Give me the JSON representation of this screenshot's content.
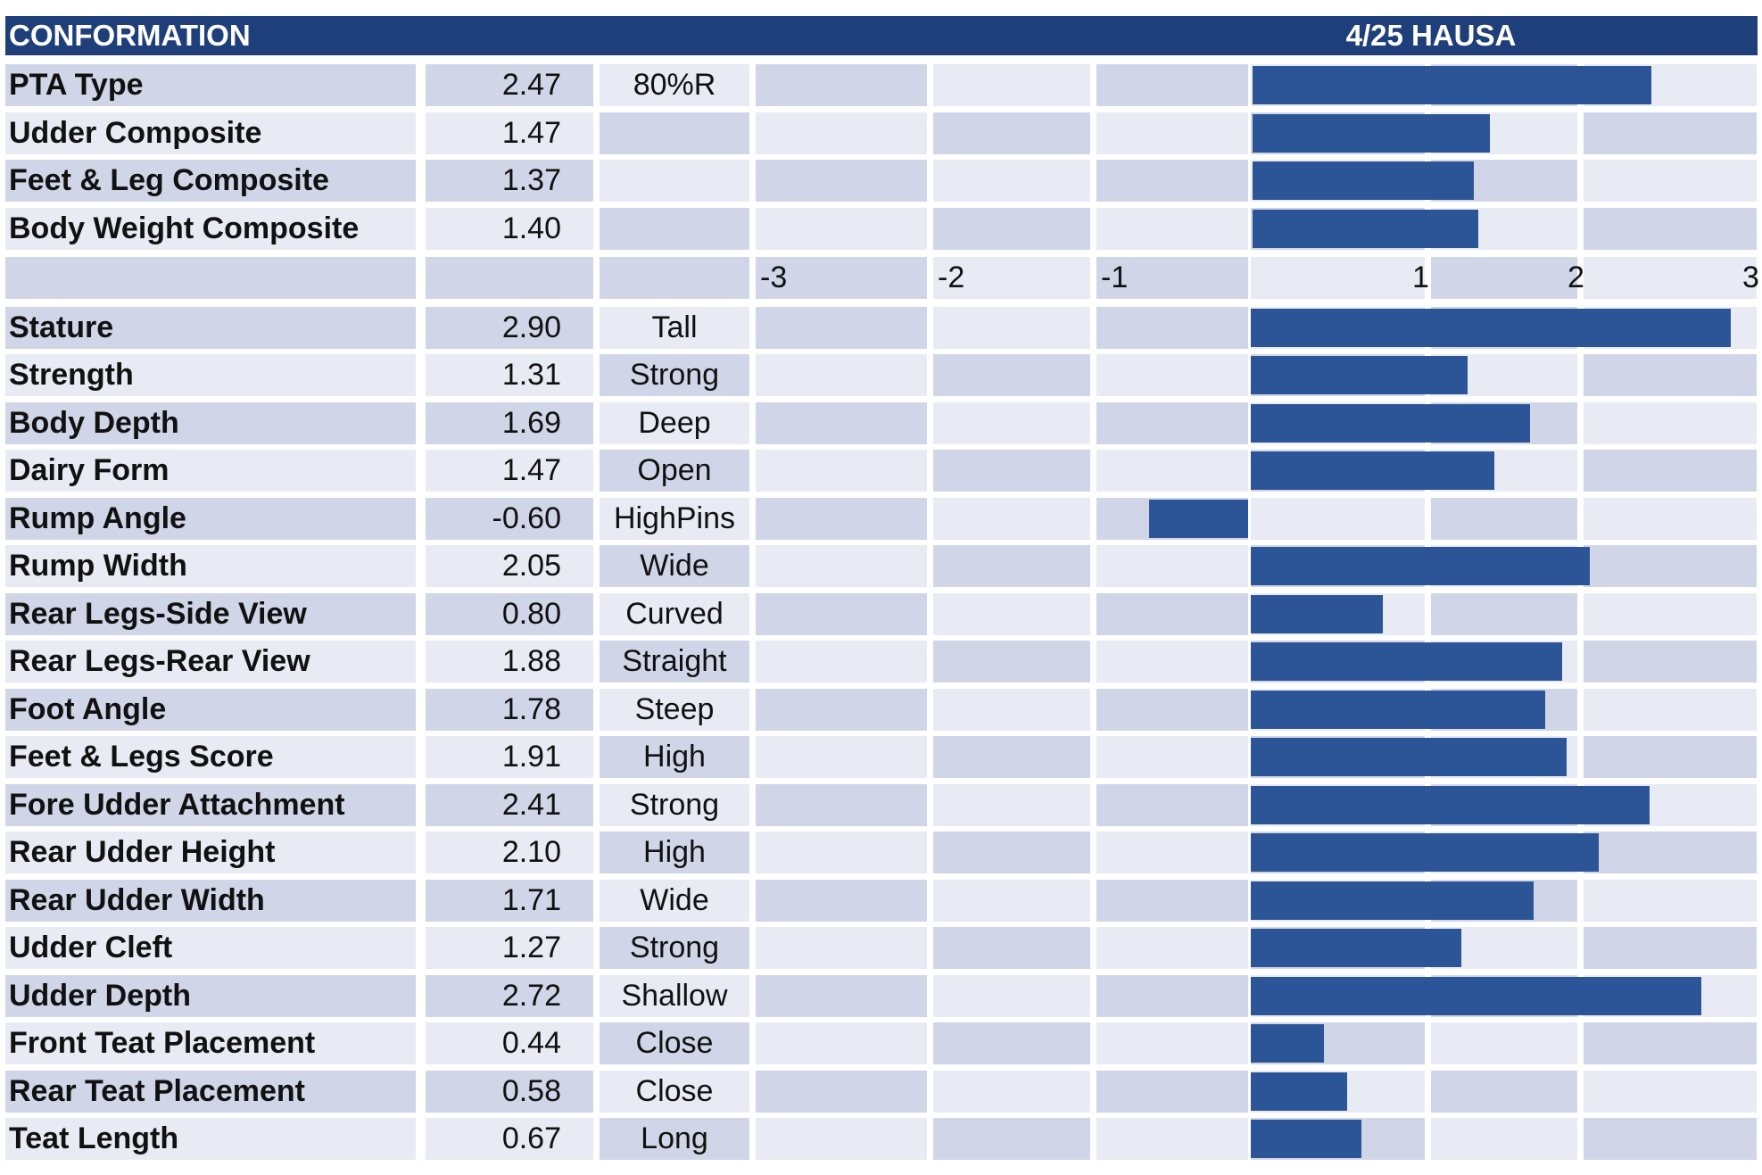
{
  "header": {
    "title": "CONFORMATION",
    "source": "4/25 HAUSA"
  },
  "colors": {
    "header_bg": "#1f3f7a",
    "bar": "#2b5597",
    "row_dark": "#d0d5e8",
    "row_light": "#e8ebf4"
  },
  "chart_data": [
    {
      "type": "bar",
      "orientation": "horizontal",
      "title": "",
      "xlim": [
        0,
        3
      ],
      "categories": [
        "PTA Type",
        "Udder Composite",
        "Feet & Leg Composite",
        "Body Weight Composite"
      ],
      "values": [
        2.47,
        1.47,
        1.37,
        1.4
      ],
      "value_labels": [
        "2.47",
        "1.47",
        "1.37",
        "1.40"
      ],
      "descriptors": [
        "80%R",
        "",
        "",
        ""
      ]
    },
    {
      "type": "bar",
      "orientation": "horizontal",
      "title": "",
      "xlim": [
        -3,
        3
      ],
      "xticks": [
        "-3",
        "-2",
        "-1",
        "1",
        "2",
        "3"
      ],
      "categories": [
        "Stature",
        "Strength",
        "Body Depth",
        "Dairy Form",
        "Rump Angle",
        "Rump Width",
        "Rear Legs-Side View",
        "Rear Legs-Rear View",
        "Foot Angle",
        "Feet & Legs Score",
        "Fore Udder Attachment",
        "Rear Udder Height",
        "Rear Udder Width",
        "Udder Cleft",
        "Udder Depth",
        "Front Teat Placement",
        "Rear Teat Placement",
        "Teat Length"
      ],
      "values": [
        2.9,
        1.31,
        1.69,
        1.47,
        -0.6,
        2.05,
        0.8,
        1.88,
        1.78,
        1.91,
        2.41,
        2.1,
        1.71,
        1.27,
        2.72,
        0.44,
        0.58,
        0.67
      ],
      "value_labels": [
        "2.90",
        "1.31",
        "1.69",
        "1.47",
        "-0.60",
        "2.05",
        "0.80",
        "1.88",
        "1.78",
        "1.91",
        "2.41",
        "2.10",
        "1.71",
        "1.27",
        "2.72",
        "0.44",
        "0.58",
        "0.67"
      ],
      "descriptors": [
        "Tall",
        "Strong",
        "Deep",
        "Open",
        "HighPins",
        "Wide",
        "Curved",
        "Straight",
        "Steep",
        "High",
        "Strong",
        "High",
        "Wide",
        "Strong",
        "Shallow",
        "Close",
        "Close",
        "Long"
      ]
    }
  ]
}
